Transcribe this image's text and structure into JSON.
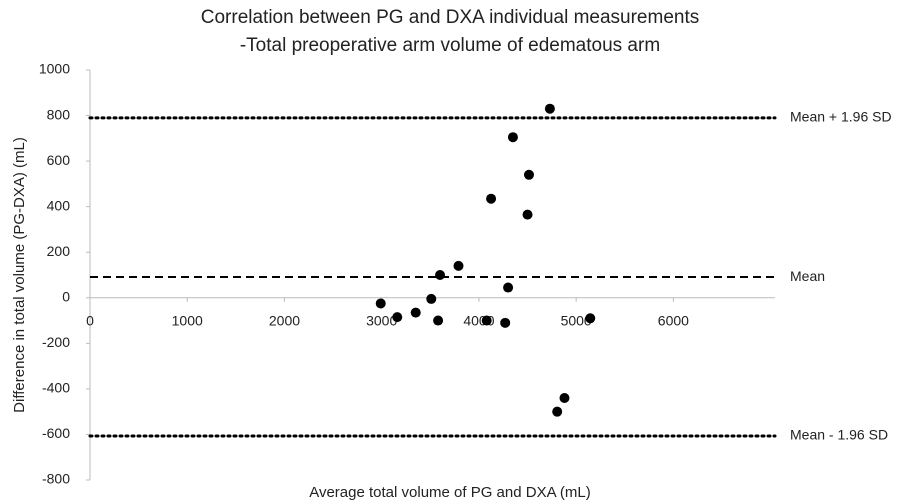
{
  "chart_data": {
    "type": "scatter",
    "title": [
      "Correlation between PG and DXA individual measurements",
      "-Total preoperative arm volume of edematous arm"
    ],
    "x_label": "Average total volume of PG and DXA (mL)",
    "y_label": "Difference in total volume (PG-DXA) (mL)",
    "xlim": [
      0,
      6500
    ],
    "ylim": [
      -800,
      1000
    ],
    "xticks": [
      0,
      1000,
      2000,
      3000,
      4000,
      5000,
      6000
    ],
    "yticks": [
      1000,
      800,
      600,
      400,
      200,
      0,
      -200,
      -400,
      -600,
      -800
    ],
    "series": [
      {
        "color": "#000000",
        "x": [
          2990,
          3160,
          3350,
          3510,
          3580,
          3600,
          3790,
          4080,
          4125,
          4270,
          4300,
          4350,
          4500,
          4515,
          4730,
          5145,
          4805,
          4880
        ],
        "values": [
          -25,
          -85,
          -65,
          -5,
          -100,
          100,
          140,
          -100,
          435,
          -110,
          45,
          705,
          365,
          540,
          830,
          -90,
          -500,
          -440
        ]
      }
    ],
    "reference_lines": [
      {
        "label": "Mean + 1.96 SD",
        "value": 790,
        "style": "dotted"
      },
      {
        "label": "Mean",
        "value": 91,
        "style": "dashed"
      },
      {
        "label": "Mean - 1.96 SD",
        "value": -607,
        "style": "dotted"
      }
    ]
  }
}
